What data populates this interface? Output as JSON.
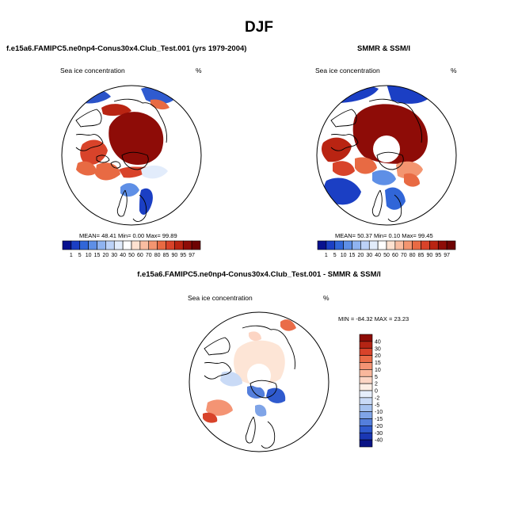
{
  "figure": {
    "title": "DJF",
    "panel1": {
      "title": "f.e15a6.FAMIPC5.ne0np4-Conus30x4.Club_Test.001 (yrs 1979-2004)",
      "variable": "Sea ice concentration",
      "units": "%",
      "stats": "MEAN=  48.41  Min=   0.00  Max=  99.89"
    },
    "panel2": {
      "title": "SMMR & SSM/I",
      "variable": "Sea ice concentration",
      "units": "%",
      "stats": "MEAN=  50.37  Min=   0.10  Max=  99.45"
    },
    "panel3": {
      "title": "f.e15a6.FAMIPC5.ne0np4-Conus30x4.Club_Test.001 - SMMR & SSM/I",
      "variable": "Sea ice concentration",
      "units": "%",
      "stats": "MIN = -84.32 MAX =  23.23"
    }
  },
  "colorbar_levels": [
    "1",
    "5",
    "10",
    "15",
    "20",
    "30",
    "40",
    "50",
    "60",
    "70",
    "80",
    "85",
    "90",
    "95",
    "97"
  ],
  "colorbar_colors": [
    "#08118f",
    "#1b3fc4",
    "#3166d8",
    "#5e8fe6",
    "#8fb3f0",
    "#bcd2f7",
    "#e2ecfb",
    "#ffffff",
    "#fde1d0",
    "#f9bda1",
    "#f39570",
    "#e86a43",
    "#d8432a",
    "#b92412",
    "#8e0c07",
    "#6e0303"
  ],
  "diff_levels": [
    "40",
    "30",
    "20",
    "15",
    "10",
    "5",
    "2",
    "0",
    "-2",
    "-5",
    "-10",
    "-15",
    "-20",
    "-30",
    "-40"
  ],
  "diff_colors": [
    "#8e0c07",
    "#b42414",
    "#d8432a",
    "#ea6c48",
    "#f49474",
    "#f9b79c",
    "#fcd5c4",
    "#fdeee5",
    "#e6eefb",
    "#c9daf6",
    "#a6c2ef",
    "#7fa4e7",
    "#547fdc",
    "#2f5ace",
    "#1a37b4",
    "#0a1486"
  ]
}
